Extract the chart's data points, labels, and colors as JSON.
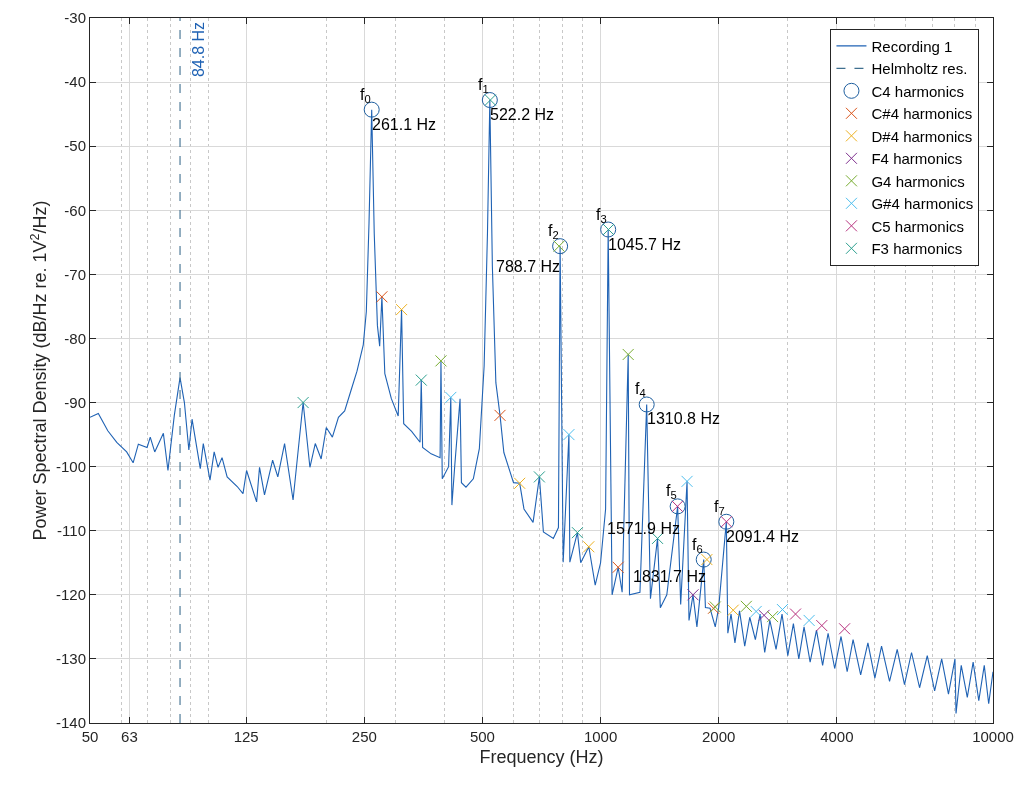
{
  "chart_data": {
    "type": "line",
    "xlabel": "Frequency (Hz)",
    "ylabel": "Power Spectral Density (dB/Hz re. 1V$^{2}$/Hz)",
    "log": "x",
    "xlim": [
      50,
      10000
    ],
    "xticks": [
      50,
      63,
      125,
      250,
      500,
      1000,
      2000,
      4000,
      10000
    ],
    "ylim": [
      -140,
      -30
    ],
    "yticks": [
      -140,
      -130,
      -120,
      -110,
      -100,
      -90,
      -80,
      -70,
      -60,
      -50,
      -40,
      -30
    ],
    "grid": true,
    "legend": "top right",
    "series": [
      {
        "name": "Recording 1",
        "type": "line",
        "color": "#1f62b4",
        "line_style": "solid",
        "marker": "none",
        "x": [
          50,
          52.5,
          55.5,
          58.5,
          62,
          64.4,
          66.4,
          69.9,
          71.2,
          73.1,
          76.9,
          79,
          82,
          84.8,
          87,
          89.3,
          91,
          95.5,
          97.2,
          101.1,
          103.6,
          106,
          108.5,
          111.8,
          118.6,
          122.7,
          125.3,
          132.9,
          135.2,
          139.2,
          146,
          150.5,
          156.6,
          164.6,
          174.6,
          181.7,
          187.5,
          194.1,
          200,
          207.3,
          214.8,
          222.8,
          231,
          239.5,
          248.5,
          253,
          257,
          261.1,
          265,
          270,
          273.6,
          277.2,
          282,
          293,
          305,
          311.1,
          315,
          330,
          346.7,
          349.2,
          352,
          370,
          390,
          392,
          395,
          410,
          415.3,
          418,
          425,
          438.5,
          442,
          454,
          474,
          491,
          505,
          515,
          522.2,
          530,
          541,
          554.4,
          567,
          600,
          622.2,
          638,
          673,
          698.4,
          715,
          758,
          781,
          788.7,
          803,
          830.6,
          835,
          873,
          890,
          933.4,
          969,
          1000,
          1030,
          1045.7,
          1070,
          1108.8,
          1135,
          1176,
          1185,
          1260,
          1310.8,
          1340,
          1397,
          1420,
          1475,
          1571.9,
          1600,
          1661,
          1680,
          1720,
          1760,
          1831.7,
          1850,
          1901,
          1960,
          2000,
          2091.4,
          2110,
          2150,
          2200,
          2260,
          2330,
          2400,
          2480,
          2550,
          2620,
          2700,
          2800,
          2900,
          3000,
          3100,
          3200,
          3300,
          3420,
          3550,
          3680,
          3800,
          3950,
          4100,
          4250,
          4400,
          4600,
          4800,
          5000,
          5200,
          5450,
          5700,
          5950,
          6200,
          6500,
          6800,
          7100,
          7400,
          7700,
          8000,
          8050,
          8300,
          8600,
          8900,
          9200,
          9500,
          9750,
          10000
        ],
        "values": [
          -92.3,
          -91.7,
          -94.4,
          -96.2,
          -97.7,
          -99.4,
          -96.5,
          -97,
          -95.4,
          -97.7,
          -94.8,
          -100.6,
          -92,
          -86.1,
          -90,
          -97.4,
          -92.6,
          -100.3,
          -96.4,
          -102.1,
          -97.7,
          -100.1,
          -98.6,
          -101.6,
          -103.1,
          -104.2,
          -100.6,
          -105.5,
          -100.1,
          -104.4,
          -99,
          -101.6,
          -96.4,
          -105.2,
          -90,
          -100.1,
          -96.4,
          -98.8,
          -93.9,
          -95.4,
          -92.3,
          -91.3,
          -88.2,
          -85.1,
          -81,
          -75.8,
          -62,
          -44.3,
          -63.6,
          -78,
          -81.2,
          -73.5,
          -85.5,
          -89.4,
          -92.1,
          -75.5,
          -93.3,
          -94.5,
          -96.2,
          -86.5,
          -97,
          -98,
          -98.6,
          -83.5,
          -101.9,
          -100,
          -89.2,
          -106,
          -99.9,
          -89.4,
          -102.5,
          -103.2,
          -101.9,
          -97.2,
          -84.3,
          -63.6,
          -42.8,
          -68.7,
          -86.9,
          -92,
          -97.8,
          -102.5,
          -102.6,
          -106.6,
          -108.7,
          -101.6,
          -110.2,
          -111.2,
          -109.5,
          -65.6,
          -114.9,
          -95,
          -114.9,
          -110.3,
          -115,
          -112.5,
          -118.5,
          -115,
          -106.6,
          -63,
          -120,
          -115.7,
          -119.6,
          -82.5,
          -120,
          -119.6,
          -90.3,
          -120.6,
          -111.2,
          -122,
          -120,
          -106.2,
          -121.5,
          -102.3,
          -124,
          -120,
          -125,
          -114.5,
          -122,
          -122.1,
          -125,
          -122,
          -108.6,
          -126,
          -123,
          -127.5,
          -122.5,
          -128,
          -123.5,
          -127,
          -123,
          -129,
          -124,
          -128.5,
          -123,
          -129.5,
          -124.5,
          -130,
          -125,
          -130.5,
          -125.5,
          -131,
          -126,
          -131.5,
          -126.5,
          -132,
          -127,
          -132.5,
          -127.5,
          -133,
          -128,
          -133.5,
          -128.5,
          -134,
          -129,
          -134.5,
          -129.5,
          -135,
          -130,
          -135.5,
          -130,
          -138.5,
          -131,
          -136,
          -130.5,
          -136.5,
          -131,
          -137,
          -132
        ]
      },
      {
        "name": "Helmholtz res.",
        "type": "line",
        "color": "#3f6f8f",
        "line_style": "dashed",
        "marker": "none",
        "x": [
          84.8,
          84.8
        ],
        "values": [
          -140,
          -30
        ]
      },
      {
        "name": "C4 harmonics",
        "type": "scatter",
        "color": "#1f5f9f",
        "marker": "circle",
        "x": [
          261.1,
          522.2,
          788.7,
          1045.7,
          1310.8,
          1571.9,
          1831.7,
          2091.4
        ],
        "values": [
          -44.3,
          -42.8,
          -65.6,
          -63,
          -90.3,
          -106.2,
          -114.5,
          -108.6
        ]
      },
      {
        "name": "C#4 harmonics",
        "type": "scatter",
        "color": "#d95319",
        "marker": "cross",
        "x": [
          277.2,
          554.4,
          1108.8,
          1940
        ],
        "values": [
          -73.5,
          -92,
          -115.7,
          -122.1
        ]
      },
      {
        "name": "D#4 harmonics",
        "type": "scatter",
        "color": "#edb120",
        "marker": "cross",
        "x": [
          311.1,
          622.2,
          933.3,
          1866.2,
          2177.7
        ],
        "values": [
          -75.5,
          -102.6,
          -112.5,
          -114.5,
          -122.4
        ]
      },
      {
        "name": "F4 harmonics",
        "type": "scatter",
        "color": "#7e2f8e",
        "marker": "cross",
        "x": [
          1720,
          2610
        ],
        "values": [
          -120,
          -123.2
        ]
      },
      {
        "name": "G4 harmonics",
        "type": "scatter",
        "color": "#77ac30",
        "marker": "cross",
        "x": [
          392,
          784,
          1176,
          1960,
          2352,
          2744
        ],
        "values": [
          -83.5,
          -65.6,
          -82.5,
          -121.9,
          -121.8,
          -123.4
        ]
      },
      {
        "name": "G#4 harmonics",
        "type": "scatter",
        "color": "#4dbeee",
        "marker": "cross",
        "x": [
          415.3,
          830.6,
          1661,
          2491.8,
          2907.3,
          3400
        ],
        "values": [
          -89.2,
          -95,
          -102.3,
          -122.6,
          -122.3,
          -124
        ]
      },
      {
        "name": "C5 harmonics",
        "type": "scatter",
        "color": "#b8327f",
        "marker": "cross",
        "x": [
          1569.8,
          2093,
          3139,
          3662,
          4186
        ],
        "values": [
          -106.2,
          -108.6,
          -123,
          -124.8,
          -125.3
        ]
      },
      {
        "name": "F3 harmonics",
        "type": "scatter",
        "color": "#2ca08f",
        "marker": "cross",
        "x": [
          174.6,
          349.2,
          523.8,
          698.4,
          873,
          1047.6,
          1397
        ],
        "values": [
          -90,
          -86.5,
          -42.8,
          -101.6,
          -110.3,
          -63,
          -111.2
        ]
      }
    ],
    "annotations": [
      {
        "text": "84.8 Hz",
        "x": 84.8,
        "y": -30
      },
      {
        "text": "f$_{0}$",
        "x": 261.1,
        "y": -44.3
      },
      {
        "text": "261.1 Hz",
        "x": 261.1,
        "y": -44.3
      },
      {
        "text": "f$_{1}$",
        "x": 522.2,
        "y": -42.8
      },
      {
        "text": "522.2 Hz",
        "x": 522.2,
        "y": -42.8
      },
      {
        "text": "f$_{2}$",
        "x": 788.7,
        "y": -65.6
      },
      {
        "text": "788.7 Hz",
        "x": 788.7,
        "y": -65.6
      },
      {
        "text": "f$_{3}$",
        "x": 1045.7,
        "y": -63
      },
      {
        "text": "1045.7 Hz",
        "x": 1045.7,
        "y": -63
      },
      {
        "text": "f$_{4}$",
        "x": 1310.8,
        "y": -90.3
      },
      {
        "text": "1310.8 Hz",
        "x": 1310.8,
        "y": -90.3
      },
      {
        "text": "f$_{5}$",
        "x": 1571.9,
        "y": -106.2
      },
      {
        "text": "1571.9 Hz",
        "x": 1571.9,
        "y": -106.2
      },
      {
        "text": "f$_{6}$",
        "x": 1831.7,
        "y": -114.5
      },
      {
        "text": "1831.7 Hz",
        "x": 1831.7,
        "y": -114.5
      },
      {
        "text": "f$_{7}$",
        "x": 2091.4,
        "y": -108.6
      },
      {
        "text": "2091.4 Hz",
        "x": 2091.4,
        "y": -108.6
      }
    ]
  }
}
